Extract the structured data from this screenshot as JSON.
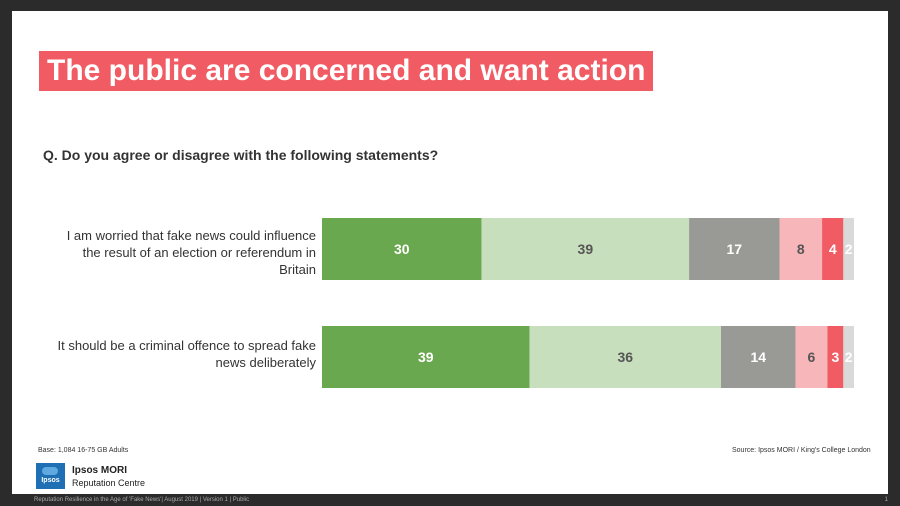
{
  "title": "The public are concerned and want action",
  "question": "Q. Do you agree or disagree with the following statements?",
  "colors": {
    "title_bg": "#f15b64",
    "segments": [
      "#6aa84f",
      "#c8dfbd",
      "#999a95",
      "#f7b6b9",
      "#f15b64",
      "#d9d9d9"
    ]
  },
  "chart_data": {
    "type": "bar",
    "orientation": "horizontal",
    "stacked": true,
    "categories": [
      "I am worried that fake news could influence the result of an election or referendum in Britain",
      "It should be a criminal offence to spread fake news deliberately"
    ],
    "series": [
      {
        "values": [
          30,
          39
        ]
      },
      {
        "values": [
          39,
          36
        ]
      },
      {
        "values": [
          17,
          14
        ]
      },
      {
        "values": [
          8,
          6
        ]
      },
      {
        "values": [
          4,
          3
        ]
      },
      {
        "values": [
          2,
          2
        ]
      }
    ],
    "xlim": [
      0,
      100
    ],
    "legend": "none",
    "grid": false
  },
  "labels": {
    "row1": [
      "I am worried that fake news could influence",
      "the result of an election or referendum in",
      "Britain"
    ],
    "row2": [
      "It should be a criminal offence to spread fake",
      "news deliberately"
    ]
  },
  "footer": {
    "base": "Base: 1,084 16-75 GB Adults",
    "source": "Source: Ipsos MORI / King's College London",
    "brand": "Ipsos MORI",
    "brand_sub": "Reputation Centre",
    "logo_text": "Ipsos",
    "bottom_left": "Reputation  Resilience in the Age of 'Fake News'|  August 2019 |  Version 1 |  Public",
    "page_number": "1"
  }
}
